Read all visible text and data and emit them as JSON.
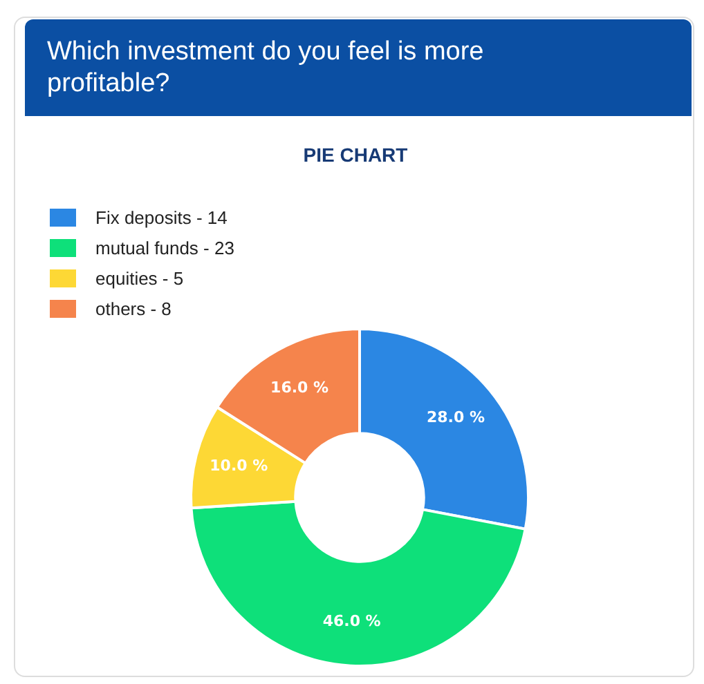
{
  "chart_data": {
    "type": "donut",
    "title": "Which investment do you feel is more profitable?",
    "subtitle": "PIE CHART",
    "categories": [
      "Fix deposits - 14",
      "mutual funds - 23",
      "equities - 5",
      "others - 8"
    ],
    "values": [
      28,
      46,
      10,
      16
    ],
    "colors": [
      "#2b87e3",
      "#0ee07a",
      "#fdd835",
      "#f5844c"
    ],
    "value_labels": [
      "28.0 %",
      "46.0 %",
      "10.0 %",
      "16.0 %"
    ],
    "legend": "top left"
  }
}
